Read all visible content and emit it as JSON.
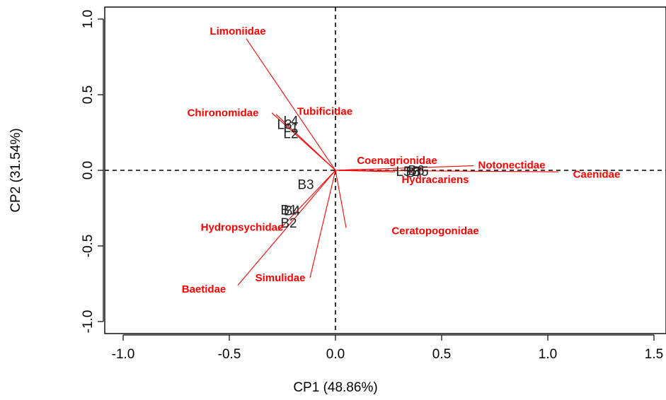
{
  "chart_data": {
    "type": "scatter",
    "subtype": "pca-biplot",
    "title": "",
    "xlabel": "CP1 (48.86%)",
    "ylabel": "CP2 (31.54%)",
    "xlim": [
      -1.1,
      1.55
    ],
    "ylim": [
      -1.08,
      1.08
    ],
    "xticks": [
      {
        "value": -1.0,
        "label": "-1.0"
      },
      {
        "value": -0.5,
        "label": "-0.5"
      },
      {
        "value": 0.0,
        "label": "0.0"
      },
      {
        "value": 0.5,
        "label": "0.5"
      },
      {
        "value": 1.0,
        "label": "1.0"
      },
      {
        "value": 1.5,
        "label": "1.5"
      }
    ],
    "yticks": [
      {
        "value": -1.0,
        "label": "-1.0"
      },
      {
        "value": -0.5,
        "label": "-0.5"
      },
      {
        "value": 0.0,
        "label": "0.0"
      },
      {
        "value": 0.5,
        "label": "0.5"
      },
      {
        "value": 1.0,
        "label": "1.0"
      }
    ],
    "reference_lines": {
      "x": 0,
      "y": 0
    },
    "grid": false,
    "colors": {
      "variables": "#ff0000",
      "sites": "#222222",
      "axes": "#000000"
    },
    "variables": [
      {
        "name": "Limoniidae",
        "x": -0.42,
        "y": 0.87,
        "label": "Limoniidae",
        "lx": -0.46,
        "ly": 0.92
      },
      {
        "name": "Tubificidae",
        "x": -0.28,
        "y": 0.37,
        "label": "Tubificidae",
        "lx": -0.05,
        "ly": 0.39
      },
      {
        "name": "Chironomidae",
        "x": -0.3,
        "y": 0.38,
        "label": "Chironomidae",
        "lx": -0.53,
        "ly": 0.38
      },
      {
        "name": "Coenagrionidae",
        "x": 0.09,
        "y": 0.005,
        "label": "Coenagrionidae",
        "lx": 0.29,
        "ly": 0.065
      },
      {
        "name": "Notonectidae",
        "x": 0.65,
        "y": 0.03,
        "label": "Notonectidae",
        "lx": 0.83,
        "ly": 0.035
      },
      {
        "name": "Caenidae",
        "x": 1.05,
        "y": -0.01,
        "label": "Caenidae",
        "lx": 1.23,
        "ly": -0.025
      },
      {
        "name": "Hydracariens",
        "x": 0.28,
        "y": -0.01,
        "label": "Hydracariens",
        "lx": 0.47,
        "ly": -0.06
      },
      {
        "name": "Ceratopogonidae",
        "x": 0.05,
        "y": -0.38,
        "label": "Ceratopogonidae",
        "lx": 0.47,
        "ly": -0.4
      },
      {
        "name": "Hydropsychidae",
        "x": -0.27,
        "y": -0.4,
        "label": "Hydropsychidae",
        "lx": -0.44,
        "ly": -0.375
      },
      {
        "name": "Simulidae",
        "x": -0.12,
        "y": -0.71,
        "label": "Simulidae",
        "lx": -0.26,
        "ly": -0.71
      },
      {
        "name": "Baetidae",
        "x": -0.46,
        "y": -0.76,
        "label": "Baetidae",
        "lx": -0.62,
        "ly": -0.785
      }
    ],
    "sites": [
      {
        "label": "L4",
        "x": -0.21,
        "y": 0.33
      },
      {
        "label": "L3",
        "x": -0.24,
        "y": 0.305
      },
      {
        "label": "L1",
        "x": -0.21,
        "y": 0.285
      },
      {
        "label": "L2",
        "x": -0.21,
        "y": 0.245
      },
      {
        "label": "B3",
        "x": -0.14,
        "y": -0.09
      },
      {
        "label": "B1",
        "x": -0.22,
        "y": -0.26
      },
      {
        "label": "B4",
        "x": -0.205,
        "y": -0.265
      },
      {
        "label": "B2",
        "x": -0.22,
        "y": -0.345
      },
      {
        "label": "L5",
        "x": 0.32,
        "y": -0.005
      },
      {
        "label": "B6",
        "x": 0.38,
        "y": 0.003
      },
      {
        "label": "B5",
        "x": 0.4,
        "y": -0.005
      },
      {
        "label": "B7",
        "x": 0.37,
        "y": -0.012
      }
    ]
  }
}
